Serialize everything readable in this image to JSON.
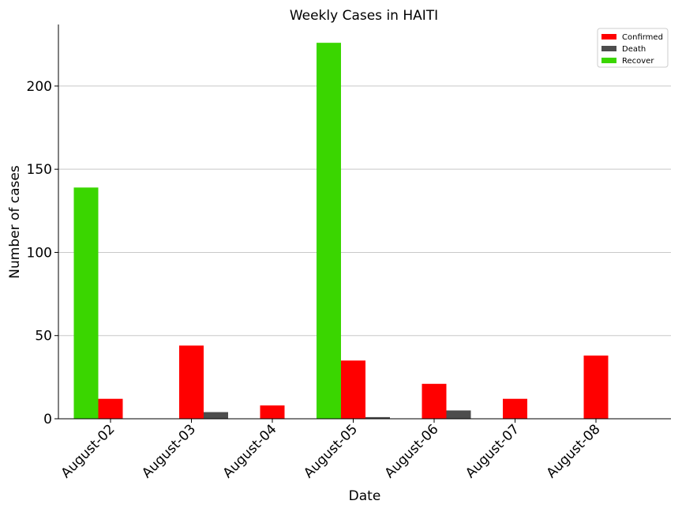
{
  "chart_data": {
    "type": "bar",
    "title": "Weekly Cases in HAITI",
    "xlabel": "Date",
    "ylabel": "Number of cases",
    "categories": [
      "August-02",
      "August-03",
      "August-04",
      "August-05",
      "August-06",
      "August-07",
      "August-08"
    ],
    "series": [
      {
        "name": "Confirmed",
        "color": "#ff0000",
        "values": [
          12,
          44,
          8,
          35,
          21,
          12,
          38
        ]
      },
      {
        "name": "Death",
        "color": "#4d4d4d",
        "values": [
          0,
          4,
          0,
          1,
          5,
          0,
          0
        ]
      },
      {
        "name": "Recover",
        "color": "#3ad600",
        "values": [
          139,
          0,
          0,
          226,
          0,
          0,
          0
        ]
      }
    ],
    "ylim": [
      0,
      237
    ],
    "yticks": [
      0,
      50,
      100,
      150,
      200
    ],
    "grid": "horizontal",
    "legend_position": "top-right"
  }
}
